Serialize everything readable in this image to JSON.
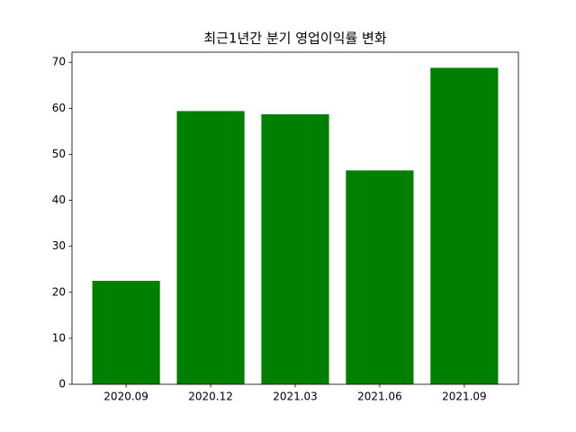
{
  "chart_data": {
    "type": "bar",
    "title": "최근1년간 분기 영업이익률 변화",
    "categories": [
      "2020.09",
      "2020.12",
      "2021.03",
      "2021.06",
      "2021.09"
    ],
    "values": [
      22.5,
      59.4,
      58.7,
      46.5,
      68.8
    ],
    "color": "#008000",
    "ylim": [
      0,
      72.2
    ],
    "yticks": [
      0,
      10,
      20,
      30,
      40,
      50,
      60,
      70
    ],
    "grid": false
  }
}
